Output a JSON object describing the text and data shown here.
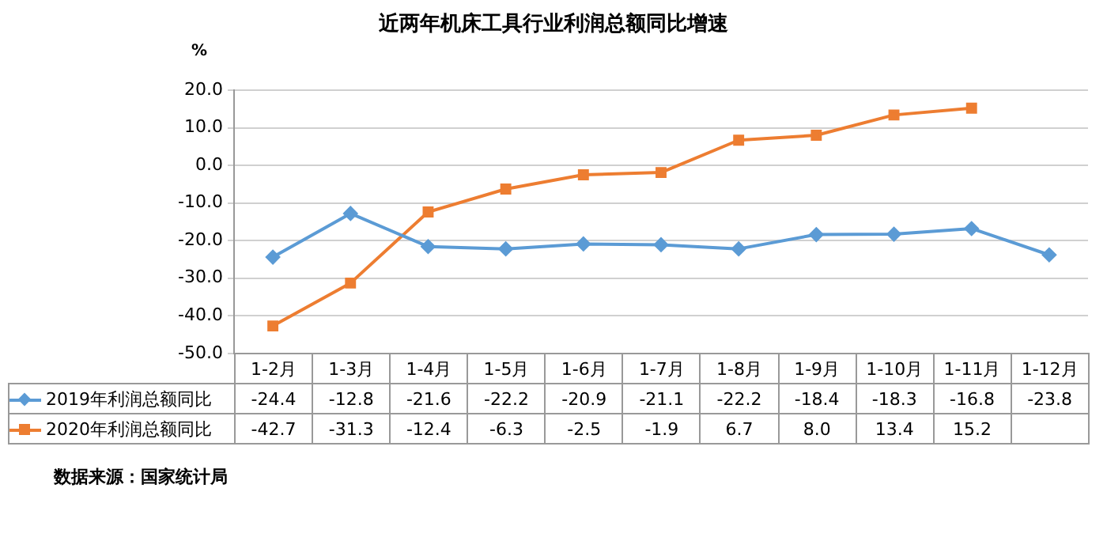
{
  "chart_data": {
    "type": "line",
    "title": "近两年机床工具行业利润总额同比增速",
    "ylabel": "%",
    "categories": [
      "1-2月",
      "1-3月",
      "1-4月",
      "1-5月",
      "1-6月",
      "1-7月",
      "1-8月",
      "1-9月",
      "1-10月",
      "1-11月",
      "1-12月"
    ],
    "series": [
      {
        "name": "2019年利润总额同比",
        "color": "#5b9bd5",
        "marker": "diamond",
        "values": [
          -24.4,
          -12.8,
          -21.6,
          -22.2,
          -20.9,
          -21.1,
          -22.2,
          -18.4,
          -18.3,
          -16.8,
          -23.8
        ],
        "value_labels": [
          "-24.4",
          "-12.8",
          "-21.6",
          "-22.2",
          "-20.9",
          "-21.1",
          "-22.2",
          "-18.4",
          "-18.3",
          "-16.8",
          "-23.8"
        ]
      },
      {
        "name": "2020年利润总额同比",
        "color": "#ed7d31",
        "marker": "square",
        "values": [
          -42.7,
          -31.3,
          -12.4,
          -6.3,
          -2.5,
          -1.9,
          6.7,
          8.0,
          13.4,
          15.2,
          null
        ],
        "value_labels": [
          "-42.7",
          "-31.3",
          "-12.4",
          "-6.3",
          "-2.5",
          "-1.9",
          "6.7",
          "8.0",
          "13.4",
          "15.2",
          null
        ]
      }
    ],
    "ylim": [
      -50,
      20
    ],
    "yticks": [
      {
        "value": -50,
        "label": "-50.0"
      },
      {
        "value": -40,
        "label": "-40.0"
      },
      {
        "value": -30,
        "label": "-30.0"
      },
      {
        "value": -20,
        "label": "-20.0"
      },
      {
        "value": -10,
        "label": "-10.0"
      },
      {
        "value": 0,
        "label": "0.0"
      },
      {
        "value": 10,
        "label": "10.0"
      },
      {
        "value": 20,
        "label": "20.0"
      }
    ],
    "grid": "y",
    "legend": "bottom",
    "annotations": [
      "数据来源：国家统计局"
    ]
  }
}
